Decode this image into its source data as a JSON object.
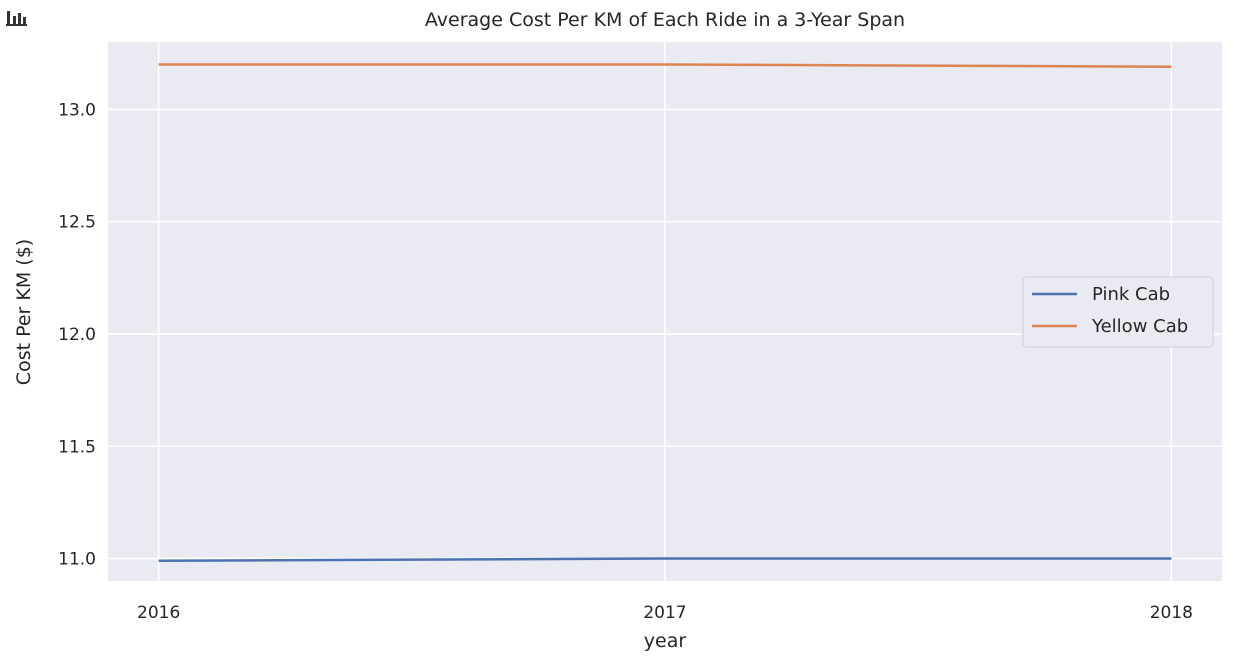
{
  "toolbar": {
    "icon": "bar-chart-icon"
  },
  "chart_data": {
    "type": "line",
    "title": "Average Cost Per KM of Each Ride in a 3-Year Span",
    "xlabel": "year",
    "ylabel": "Cost Per KM ($)",
    "x": [
      2016,
      2017,
      2018
    ],
    "xticks": [
      "2016",
      "2017",
      "2018"
    ],
    "yticks": [
      "11.0",
      "11.5",
      "12.0",
      "12.5",
      "13.0"
    ],
    "xlim": [
      2015.9,
      2018.1
    ],
    "ylim": [
      10.9,
      13.3
    ],
    "grid": true,
    "legend_position": "center-right",
    "series": [
      {
        "name": "Pink Cab",
        "color": "#4c72b0",
        "values": [
          10.99,
          11.0,
          11.0
        ]
      },
      {
        "name": "Yellow Cab",
        "color": "#dd8452",
        "values": [
          13.2,
          13.2,
          13.19
        ]
      }
    ]
  }
}
